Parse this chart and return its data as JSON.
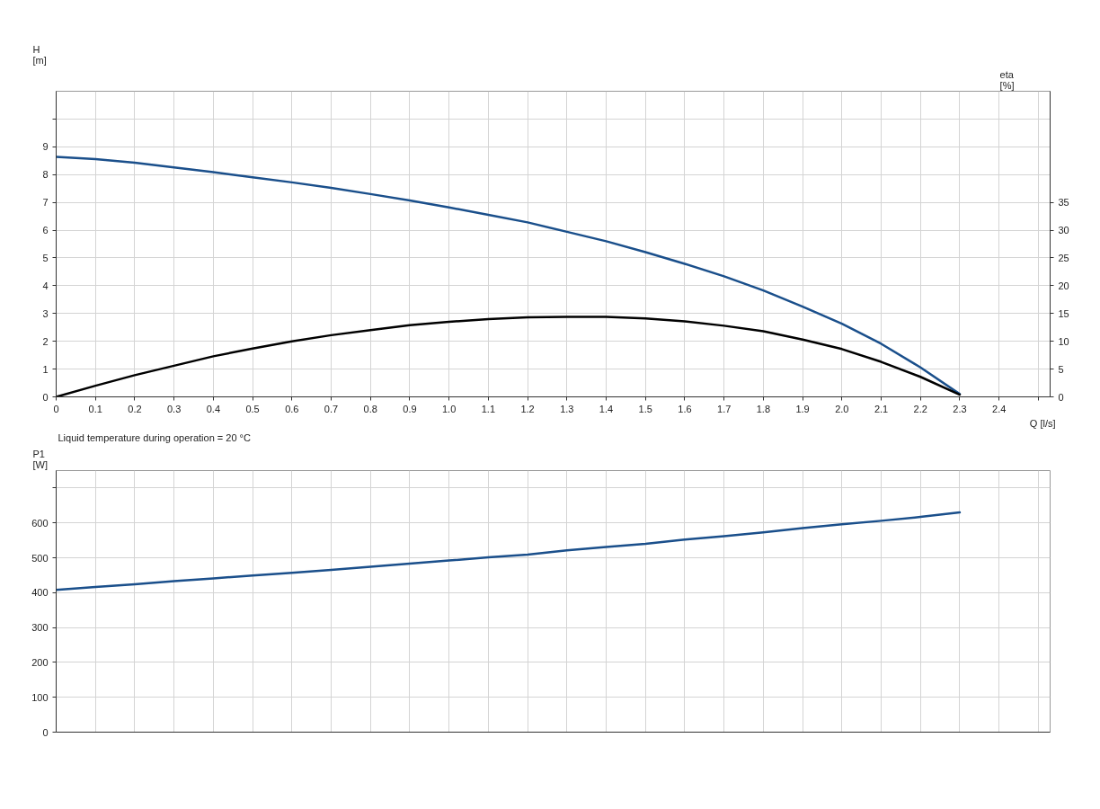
{
  "chart_data": [
    {
      "type": "line",
      "xlabel": "Q [l/s]",
      "ylabel": "H [m]",
      "y2label": "eta [%]",
      "grid": true,
      "annotations": [
        "Liquid temperature during operation = 20 °C"
      ],
      "xlim": [
        0,
        2.53
      ],
      "xticks": [
        0,
        0.1,
        0.2,
        0.3,
        0.4,
        0.5,
        0.6,
        0.7,
        0.8,
        0.9,
        {
          "value": 1,
          "label": "1.0"
        },
        1.1,
        1.2,
        1.3,
        1.4,
        1.5,
        1.6,
        1.7,
        1.8,
        1.9,
        {
          "value": 2,
          "label": "2.0"
        },
        2.1,
        2.2,
        2.3,
        2.4,
        {
          "value": 2.5,
          "label": null
        }
      ],
      "ylim": [
        0,
        11
      ],
      "yticks": [
        0,
        1,
        2,
        3,
        4,
        5,
        6,
        7,
        8,
        9,
        {
          "value": 10,
          "label": null
        }
      ],
      "y2lim": [
        0,
        55
      ],
      "y2ticks": [
        0,
        5,
        10,
        15,
        20,
        25,
        30,
        35
      ],
      "x": [
        0,
        0.1,
        0.2,
        0.3,
        0.4,
        0.5,
        0.6,
        0.7,
        0.8,
        0.9,
        1.0,
        1.1,
        1.2,
        1.3,
        1.4,
        1.5,
        1.6,
        1.7,
        1.8,
        1.9,
        2.0,
        2.1,
        2.2,
        2.3
      ],
      "series": [
        {
          "color": "#1a4f8b",
          "values": [
            8.64,
            8.56,
            8.43,
            8.26,
            8.09,
            7.9,
            7.72,
            7.52,
            7.3,
            7.07,
            6.82,
            6.55,
            6.28,
            5.94,
            5.6,
            5.21,
            4.79,
            4.34,
            3.83,
            3.25,
            2.63,
            1.91,
            1.06,
            0.1
          ]
        },
        {
          "color": "#000000",
          "axis": "y2",
          "values": [
            0,
            2.0,
            3.9,
            5.6,
            7.3,
            8.7,
            10.0,
            11.1,
            12.0,
            12.9,
            13.5,
            14.0,
            14.3,
            14.4,
            14.4,
            14.1,
            13.6,
            12.8,
            11.8,
            10.3,
            8.6,
            6.3,
            3.6,
            0.4
          ]
        }
      ]
    },
    {
      "type": "line",
      "ylabel": "P1 [W]",
      "grid": true,
      "tick_labels": "y",
      "xlim": [
        0,
        2.53
      ],
      "xticks": [
        0,
        0.1,
        0.2,
        0.3,
        0.4,
        0.5,
        0.6,
        0.7,
        0.8,
        0.9,
        1,
        1.1,
        1.2,
        1.3,
        1.4,
        1.5,
        1.6,
        1.7,
        1.8,
        1.9,
        2,
        2.1,
        2.2,
        2.3,
        2.4,
        2.5
      ],
      "ylim": [
        0,
        750
      ],
      "yticks": [
        0,
        100,
        200,
        300,
        400,
        500,
        600,
        {
          "value": 700,
          "label": null
        }
      ],
      "x": [
        0,
        0.1,
        0.2,
        0.3,
        0.4,
        0.5,
        0.6,
        0.7,
        0.8,
        0.9,
        1.0,
        1.1,
        1.2,
        1.3,
        1.4,
        1.5,
        1.6,
        1.7,
        1.8,
        1.9,
        2.0,
        2.1,
        2.2,
        2.3
      ],
      "series": [
        {
          "color": "#1a4f8b",
          "values": [
            408,
            416,
            424,
            433,
            441,
            449,
            457,
            465,
            474,
            483,
            492,
            501,
            509,
            521,
            531,
            540,
            552,
            562,
            573,
            585,
            596,
            606,
            617,
            630
          ]
        }
      ]
    }
  ]
}
